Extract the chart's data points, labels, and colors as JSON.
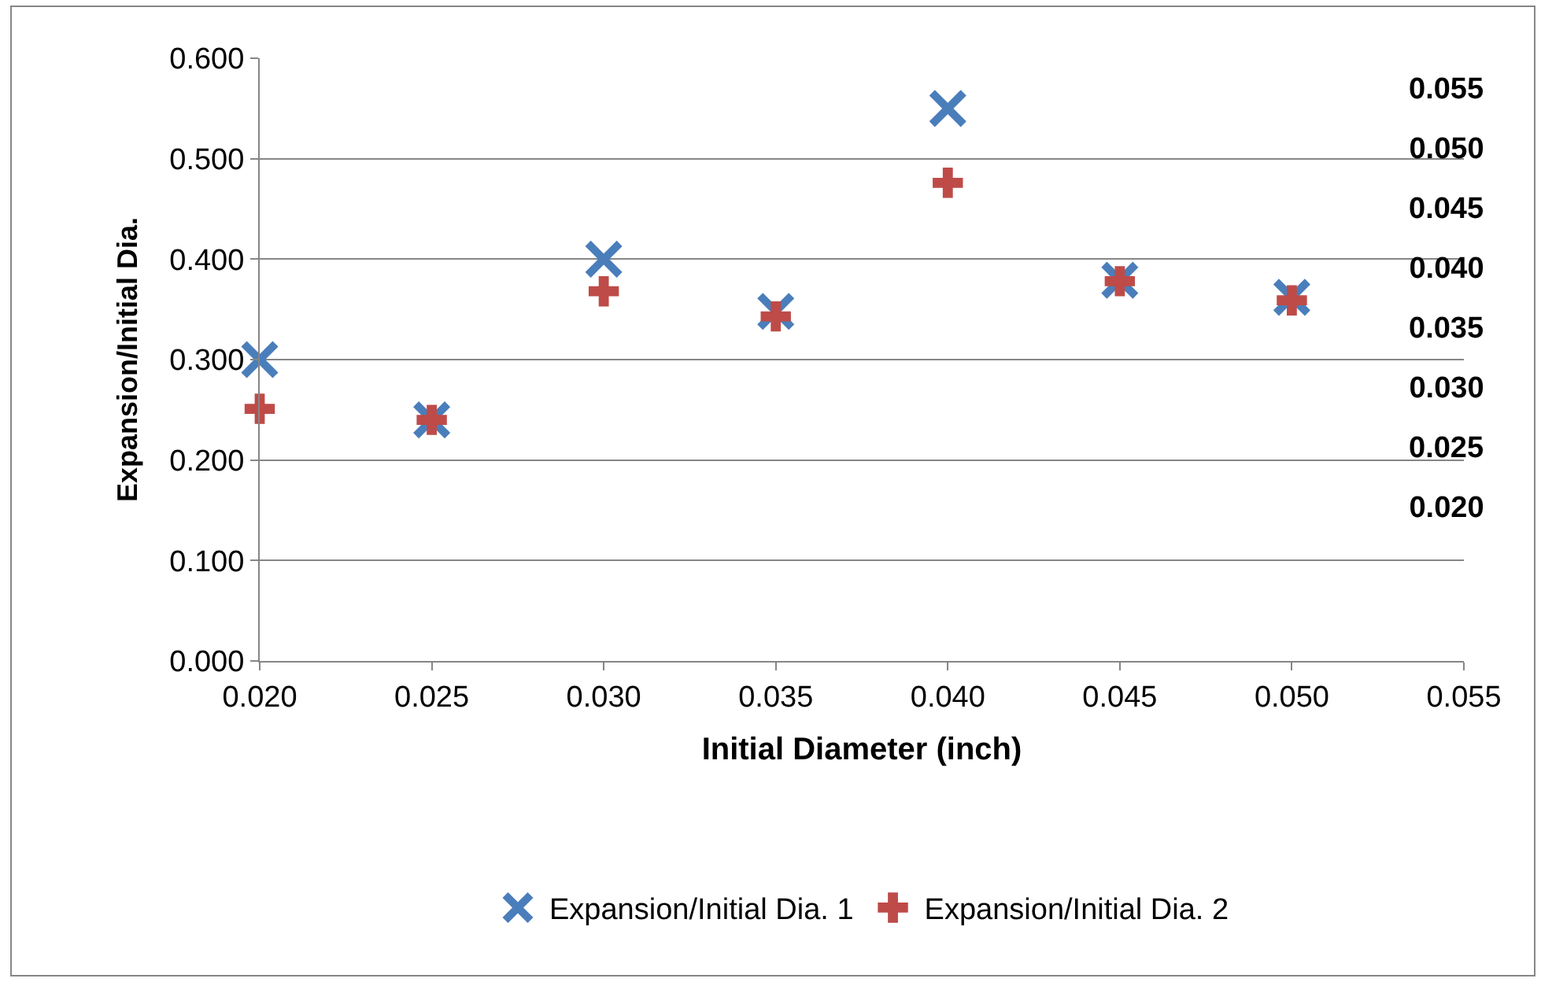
{
  "chart_data": {
    "type": "scatter",
    "xlabel": "Initial Diameter (inch)",
    "ylabel": "Expansion/Initial Dia.",
    "x": [
      0.02,
      0.025,
      0.03,
      0.035,
      0.04,
      0.045,
      0.05
    ],
    "series": [
      {
        "name": "Expansion/Initial Dia. 1",
        "color": "#4a7ebb",
        "marker": "x",
        "values": [
          0.3,
          0.24,
          0.4,
          0.348,
          0.55,
          0.379,
          0.362
        ]
      },
      {
        "name": "Expansion/Initial Dia. 2",
        "color": "#be4b48",
        "marker": "cross",
        "values": [
          0.251,
          0.24,
          0.368,
          0.343,
          0.476,
          0.378,
          0.359
        ]
      }
    ],
    "xlim": [
      0.02,
      0.055
    ],
    "xticks": [
      {
        "value": 0.02,
        "label": "0.020"
      },
      {
        "value": 0.025,
        "label": "0.025"
      },
      {
        "value": 0.03,
        "label": "0.030"
      },
      {
        "value": 0.035,
        "label": "0.035"
      },
      {
        "value": 0.04,
        "label": "0.040"
      },
      {
        "value": 0.045,
        "label": "0.045"
      },
      {
        "value": 0.05,
        "label": "0.050"
      },
      {
        "value": 0.055,
        "label": "0.055"
      }
    ],
    "ylim": [
      0,
      0.6
    ],
    "yticks": [
      {
        "value": 0,
        "label": "0.000"
      },
      {
        "value": 0.1,
        "label": "0.100"
      },
      {
        "value": 0.2,
        "label": "0.200"
      },
      {
        "value": 0.3,
        "label": "0.300"
      },
      {
        "value": 0.4,
        "label": "0.400"
      },
      {
        "value": 0.5,
        "label": "0.500"
      },
      {
        "value": 0.6,
        "label": "0.600"
      }
    ],
    "grid": "y",
    "legend": "bottom",
    "annotations": [
      "0.055",
      "0.050",
      "0.045",
      "0.040",
      "0.035",
      "0.030",
      "0.025",
      "0.020"
    ]
  }
}
